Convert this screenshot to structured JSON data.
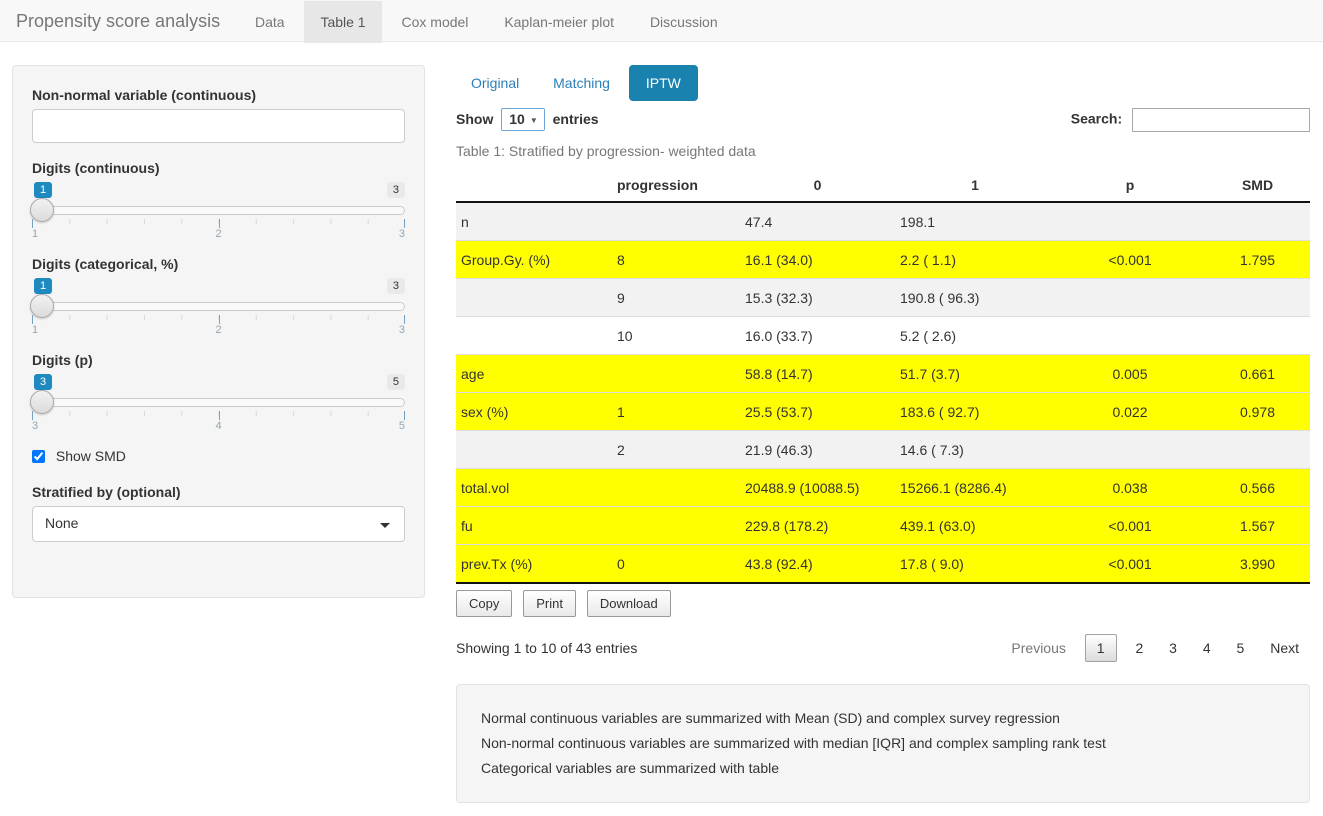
{
  "navbar": {
    "brand": "Propensity score analysis",
    "items": [
      {
        "label": "Data",
        "active": false
      },
      {
        "label": "Table 1",
        "active": true
      },
      {
        "label": "Cox model",
        "active": false
      },
      {
        "label": "Kaplan-meier plot",
        "active": false
      },
      {
        "label": "Discussion",
        "active": false
      }
    ]
  },
  "sidebar": {
    "nonnormal_label": "Non-normal variable (continuous)",
    "nonnormal_value": "",
    "sliders": [
      {
        "label": "Digits (continuous)",
        "value": "1",
        "max": "3",
        "ticks": [
          "1",
          "2",
          "3"
        ]
      },
      {
        "label": "Digits (categorical, %)",
        "value": "1",
        "max": "3",
        "ticks": [
          "1",
          "2",
          "3"
        ]
      },
      {
        "label": "Digits (p)",
        "value": "3",
        "max": "5",
        "ticks": [
          "3",
          "4",
          "5"
        ]
      }
    ],
    "show_smd": {
      "label": "Show SMD",
      "checked": true
    },
    "stratified_label": "Stratified by (optional)",
    "stratified_value": "None"
  },
  "main": {
    "tabs": [
      {
        "label": "Original",
        "active": false
      },
      {
        "label": "Matching",
        "active": false
      },
      {
        "label": "IPTW",
        "active": true
      }
    ],
    "show_label_before": "Show",
    "show_value": "10",
    "show_label_after": "entries",
    "search_label": "Search:",
    "search_value": "",
    "caption": "Table 1: Stratified by progression- weighted data",
    "table": {
      "headers": [
        "",
        "progression",
        "0",
        "1",
        "p",
        "SMD"
      ],
      "rows": [
        {
          "cells": [
            "n",
            "",
            "47.4",
            "198.1",
            "",
            ""
          ],
          "highlight": false
        },
        {
          "cells": [
            "Group.Gy. (%)",
            "8",
            "16.1 (34.0)",
            "2.2 ( 1.1)",
            "<0.001",
            "1.795"
          ],
          "highlight": true
        },
        {
          "cells": [
            "",
            "9",
            "15.3 (32.3)",
            "190.8 ( 96.3)",
            "",
            ""
          ],
          "highlight": false
        },
        {
          "cells": [
            "",
            "10",
            "16.0 (33.7)",
            "5.2 ( 2.6)",
            "",
            ""
          ],
          "highlight": false
        },
        {
          "cells": [
            "age",
            "",
            "58.8 (14.7)",
            "51.7 (3.7)",
            "0.005",
            "0.661"
          ],
          "highlight": true
        },
        {
          "cells": [
            "sex (%)",
            "1",
            "25.5 (53.7)",
            "183.6 ( 92.7)",
            "0.022",
            "0.978"
          ],
          "highlight": true
        },
        {
          "cells": [
            "",
            "2",
            "21.9 (46.3)",
            "14.6 ( 7.3)",
            "",
            ""
          ],
          "highlight": false
        },
        {
          "cells": [
            "total.vol",
            "",
            "20488.9 (10088.5)",
            "15266.1 (8286.4)",
            "0.038",
            "0.566"
          ],
          "highlight": true
        },
        {
          "cells": [
            "fu",
            "",
            "229.8 (178.2)",
            "439.1 (63.0)",
            "<0.001",
            "1.567"
          ],
          "highlight": true
        },
        {
          "cells": [
            "prev.Tx (%)",
            "0",
            "43.8 (92.4)",
            "17.8 ( 9.0)",
            "<0.001",
            "3.990"
          ],
          "highlight": true
        }
      ]
    },
    "buttons": [
      "Copy",
      "Print",
      "Download"
    ],
    "info": "Showing 1 to 10 of 43 entries",
    "pagination": {
      "previous": "Previous",
      "pages": [
        "1",
        "2",
        "3",
        "4",
        "5"
      ],
      "current": "1",
      "next": "Next"
    },
    "notes": [
      "Normal continuous variables are summarized with Mean (SD) and complex survey regression",
      "Non-normal continuous variables are summarized with median [IQR] and complex sampling rank test",
      "Categorical variables are summarized with table"
    ]
  },
  "colors": {
    "accent_blue": "#1a82ae",
    "link_blue": "#2b7fb8",
    "slider_badge_blue": "#1f8ac0",
    "highlight_yellow": "#ffff00",
    "stripe_gray": "#f2f2f2"
  }
}
